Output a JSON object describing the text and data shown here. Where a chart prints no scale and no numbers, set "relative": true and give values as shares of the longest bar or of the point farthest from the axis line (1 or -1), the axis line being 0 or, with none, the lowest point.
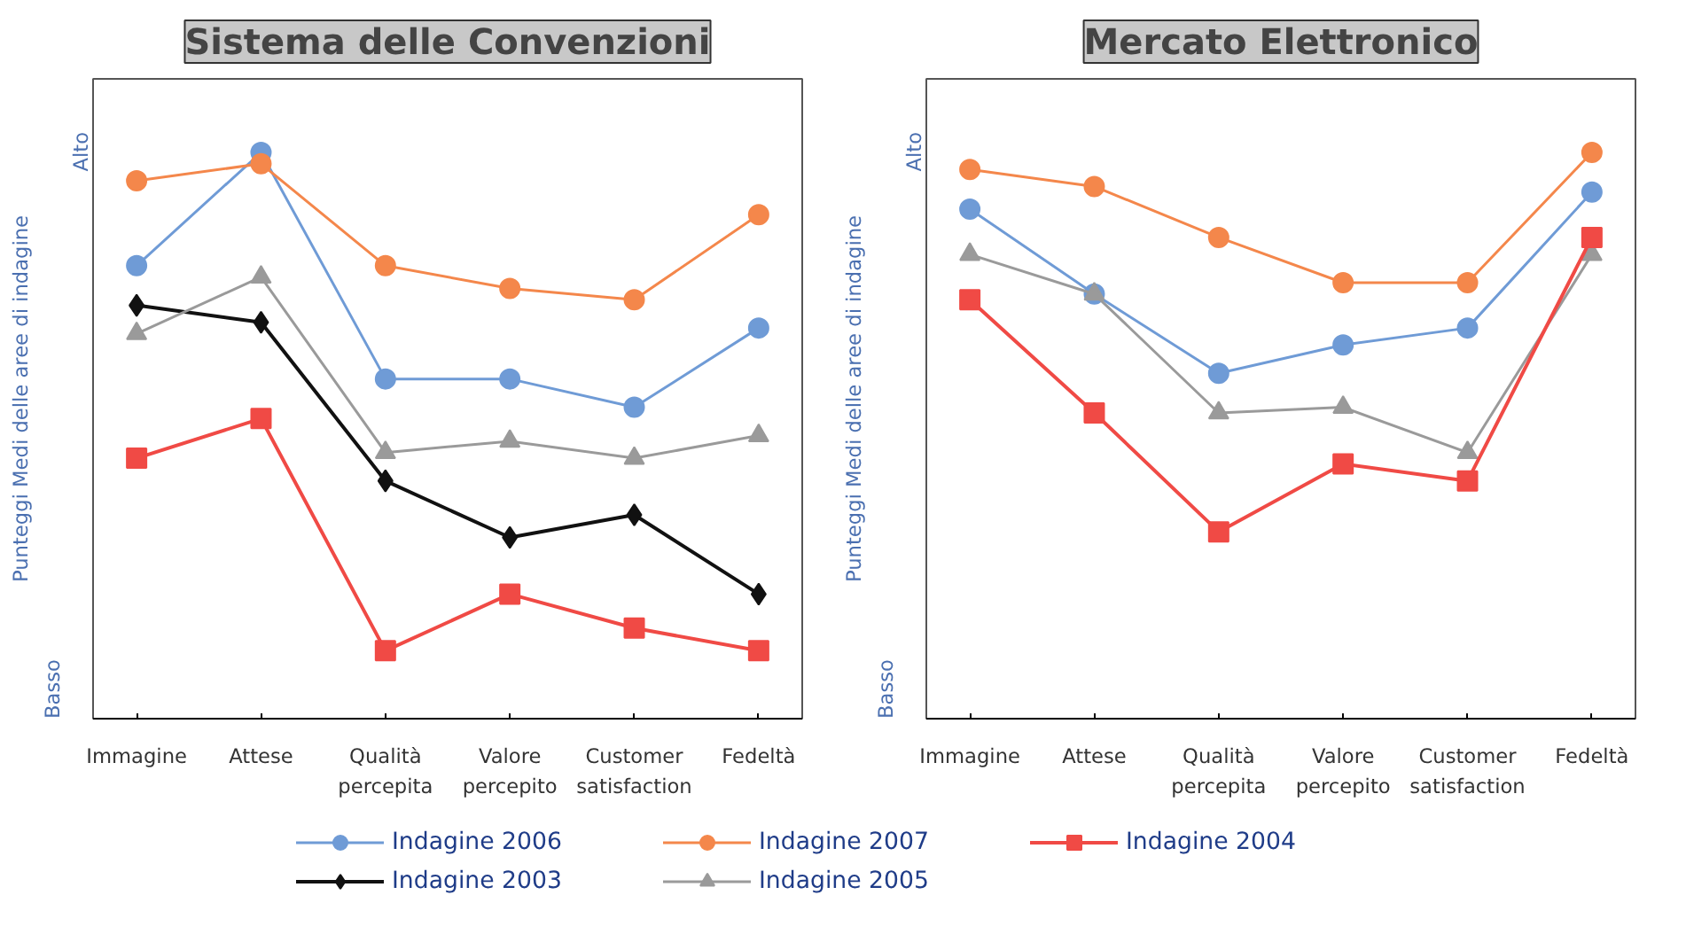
{
  "chart_data": [
    {
      "type": "line",
      "title": "Sistema delle Convenzioni",
      "ylabel": "Punteggi Medi delle aree di indagine",
      "relative": true,
      "annotations": [
        "Alto",
        "Basso"
      ],
      "categories": [
        "Immagine",
        "Attese",
        "Qualità percepita",
        "Valore percepito",
        "Customer satisfaction",
        "Fedeltà"
      ],
      "grid": false,
      "legend": "bottom",
      "series": [
        {
          "name": "Indagine 2006",
          "color": "#6f9bd6",
          "marker": "circle",
          "values": [
            0.8,
            1.0,
            0.6,
            0.6,
            0.55,
            0.69
          ]
        },
        {
          "name": "Indagine 2003",
          "color": "#111111",
          "marker": "diamond",
          "values": [
            0.73,
            0.7,
            0.42,
            0.32,
            0.36,
            0.22
          ]
        },
        {
          "name": "Indagine 2007",
          "color": "#f4874b",
          "marker": "circle",
          "values": [
            0.95,
            0.98,
            0.8,
            0.76,
            0.74,
            0.89
          ]
        },
        {
          "name": "Indagine 2005",
          "color": "#9a9a9a",
          "marker": "triangle",
          "values": [
            0.68,
            0.78,
            0.47,
            0.49,
            0.46,
            0.5
          ]
        },
        {
          "name": "Indagine 2004",
          "color": "#f04a45",
          "marker": "square",
          "values": [
            0.46,
            0.53,
            0.12,
            0.22,
            0.16,
            0.12
          ]
        }
      ]
    },
    {
      "type": "line",
      "title": "Mercato Elettronico",
      "ylabel": "Punteggi Medi delle aree di indagine",
      "relative": true,
      "annotations": [
        "Alto",
        "Basso"
      ],
      "categories": [
        "Immagine",
        "Attese",
        "Qualità percepita",
        "Valore percepito",
        "Customer satisfaction",
        "Fedeltà"
      ],
      "grid": false,
      "legend": "bottom",
      "series": [
        {
          "name": "Indagine 2006",
          "color": "#6f9bd6",
          "marker": "circle",
          "values": [
            0.9,
            0.75,
            0.61,
            0.66,
            0.69,
            0.93
          ]
        },
        {
          "name": "Indagine 2007",
          "color": "#f4874b",
          "marker": "circle",
          "values": [
            0.97,
            0.94,
            0.85,
            0.77,
            0.77,
            1.0
          ]
        },
        {
          "name": "Indagine 2005",
          "color": "#9a9a9a",
          "marker": "triangle",
          "values": [
            0.82,
            0.75,
            0.54,
            0.55,
            0.47,
            0.82
          ]
        },
        {
          "name": "Indagine 2004",
          "color": "#f04a45",
          "marker": "square",
          "values": [
            0.74,
            0.54,
            0.33,
            0.45,
            0.42,
            0.85
          ]
        }
      ]
    }
  ]
}
